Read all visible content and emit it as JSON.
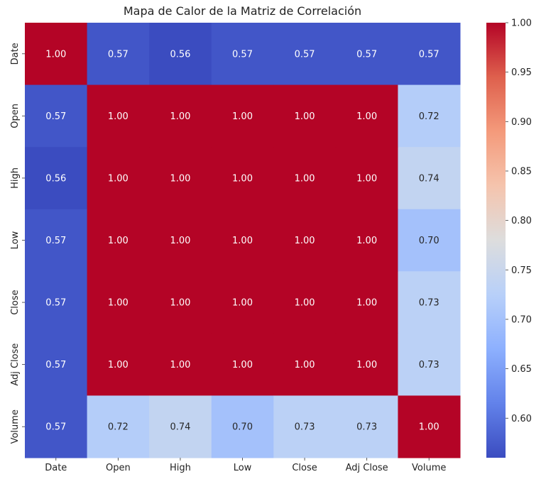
{
  "chart_data": {
    "type": "heatmap",
    "title": "Mapa de Calor de la Matriz de Correlación",
    "xlabel": "",
    "ylabel": "",
    "categories": [
      "Date",
      "Open",
      "High",
      "Low",
      "Close",
      "Adj Close",
      "Volume"
    ],
    "matrix": [
      [
        1.0,
        0.57,
        0.56,
        0.57,
        0.57,
        0.57,
        0.57
      ],
      [
        0.57,
        1.0,
        1.0,
        1.0,
        1.0,
        1.0,
        0.72
      ],
      [
        0.56,
        1.0,
        1.0,
        1.0,
        1.0,
        1.0,
        0.74
      ],
      [
        0.57,
        1.0,
        1.0,
        1.0,
        1.0,
        1.0,
        0.7
      ],
      [
        0.57,
        1.0,
        1.0,
        1.0,
        1.0,
        1.0,
        0.73
      ],
      [
        0.57,
        1.0,
        1.0,
        1.0,
        1.0,
        1.0,
        0.73
      ],
      [
        0.57,
        0.72,
        0.74,
        0.7,
        0.73,
        0.73,
        1.0
      ]
    ],
    "annotation_format": "0.00",
    "colormap": "coolwarm",
    "color_range": [
      0.56,
      1.0
    ],
    "colorbar_ticks": [
      0.6,
      0.65,
      0.7,
      0.75,
      0.8,
      0.85,
      0.9,
      0.95,
      1.0
    ],
    "grid": false,
    "colorbar_placement": "right"
  }
}
